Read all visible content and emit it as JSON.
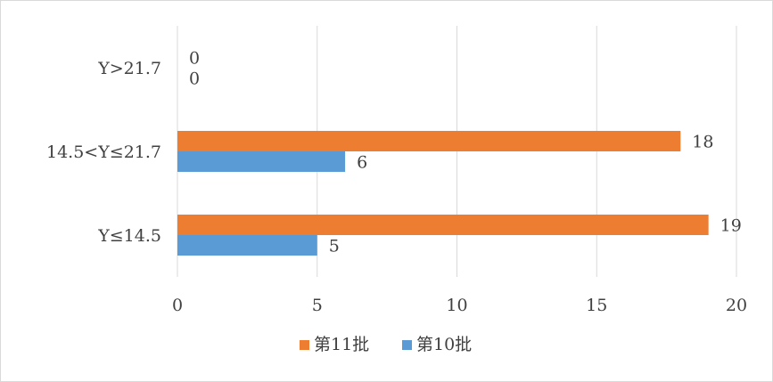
{
  "chart_data": {
    "type": "bar",
    "orientation": "horizontal",
    "categories": [
      "Y≤14.5",
      "14.5<Y≤21.7",
      "Y>21.7"
    ],
    "series": [
      {
        "name": "第11批",
        "values": [
          19,
          18,
          0
        ],
        "color": "#ED7D31"
      },
      {
        "name": "第10批",
        "values": [
          5,
          6,
          0
        ],
        "color": "#5B9BD5"
      }
    ],
    "xlim": [
      0,
      20
    ],
    "xticks": [
      "0",
      "5",
      "10",
      "15",
      "20"
    ],
    "grid": "vertical",
    "legend": "bottom",
    "title": "",
    "xlabel": "",
    "ylabel": ""
  }
}
